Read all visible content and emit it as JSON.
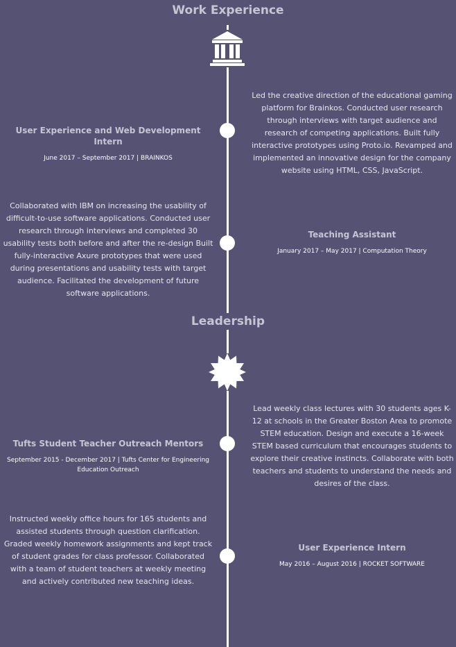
{
  "work_experience": {
    "title": "Work Experience",
    "icon": "building-columns-icon",
    "entries": [
      {
        "title": "User Experience and Web Development Intern",
        "meta": "June 2017 – September 2017 | BRAINKOS",
        "description": "Led the creative direction of the educational gaming platform for Brainkos. Conducted user research through interviews with target audience and research of competing applications. Built fully interactive prototypes using Proto.io. Revamped and implemented an innovative design for the company website using HTML, CSS, JavaScript."
      },
      {
        "title": "Teaching Assistant",
        "meta": "January 2017 – May 2017 | Computation Theory",
        "description": "Collaborated with IBM on increasing the usability of difficult-to-use software applications. Conducted user research through interviews and completed 30 usability tests both before and after the re-design Built fully-interactive Axure prototypes that were used during presentations and usability tests with target audience. Facilitated the development of future software applications."
      }
    ]
  },
  "leadership": {
    "title": "Leadership",
    "icon": "starburst-icon",
    "entries": [
      {
        "title": "Tufts Student Teacher Outreach Mentors",
        "meta": "September 2015 - December 2017 | Tufts Center for Engineering Education Outreach",
        "description": "Lead weekly class lectures with 30 students ages K-12 at schools in the Greater Boston Area to promote STEM education. Design and execute a 16-week STEM based curriculum that encourages students to explore their creative instincts. Collaborate with both teachers and students to understand the needs and desires of the class."
      },
      {
        "title": "User Experience Intern",
        "meta": "May 2016 – August 2016 | ROCKET SOFTWARE",
        "description": "Instructed weekly office hours for 165 students and assisted students through question clarification. Graded weekly homework assignments and kept track of student grades for class professor. Collaborated with a team of student teachers at weekly meeting and actively contributed new teaching ideas."
      }
    ]
  },
  "colors": {
    "background": "#555273",
    "heading": "#c7c4d3",
    "line": "#ffffff"
  }
}
